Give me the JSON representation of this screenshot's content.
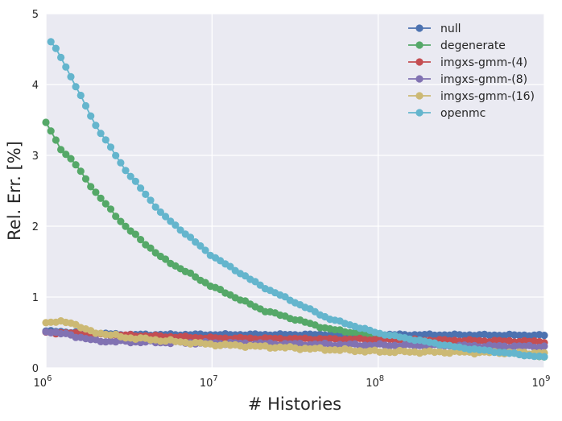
{
  "chart_data": {
    "type": "line",
    "title": "",
    "xlabel": "# Histories",
    "ylabel": "Rel. Err. [%]",
    "xscale": "log",
    "xlim": [
      1000000,
      1000000000
    ],
    "ylim": [
      0,
      5
    ],
    "x_ticks": [
      {
        "base": "10",
        "exp": "6"
      },
      {
        "base": "10",
        "exp": "7"
      },
      {
        "base": "10",
        "exp": "8"
      },
      {
        "base": "10",
        "exp": "9"
      }
    ],
    "y_ticks": [
      "0",
      "1",
      "2",
      "3",
      "4",
      "5"
    ],
    "grid": true,
    "legend_position": "top-right",
    "series": [
      {
        "name": "null",
        "color": "#4c72b0",
        "anchors": [
          [
            1000000,
            0.52
          ],
          [
            3000000,
            0.47
          ],
          [
            10000000,
            0.47
          ],
          [
            100000000,
            0.47
          ],
          [
            1000000000,
            0.46
          ]
        ],
        "noise": 0.012
      },
      {
        "name": "degenerate",
        "color": "#55a868",
        "anchors": [
          [
            1000000,
            3.46
          ],
          [
            1100000,
            3.3
          ],
          [
            1200000,
            3.12
          ],
          [
            1500000,
            2.88
          ],
          [
            2000000,
            2.47
          ],
          [
            3000000,
            2.0
          ],
          [
            5000000,
            1.55
          ],
          [
            10000000,
            1.15
          ],
          [
            20000000,
            0.82
          ],
          [
            50000000,
            0.55
          ],
          [
            100000000,
            0.45
          ],
          [
            1000000000,
            0.15
          ]
        ],
        "noise": 0.015
      },
      {
        "name": "imgxs-gmm-(4)",
        "color": "#c44e52",
        "anchors": [
          [
            1000000,
            0.5
          ],
          [
            3000000,
            0.46
          ],
          [
            10000000,
            0.42
          ],
          [
            100000000,
            0.4
          ],
          [
            1000000000,
            0.37
          ]
        ],
        "noise": 0.015
      },
      {
        "name": "imgxs-gmm-(8)",
        "color": "#8172b2",
        "anchors": [
          [
            1000000,
            0.52
          ],
          [
            1500000,
            0.45
          ],
          [
            2000000,
            0.38
          ],
          [
            5000000,
            0.36
          ],
          [
            10000000,
            0.35
          ],
          [
            100000000,
            0.32
          ],
          [
            1000000000,
            0.3
          ]
        ],
        "noise": 0.02
      },
      {
        "name": "imgxs-gmm-(16)",
        "color": "#ccb974",
        "anchors": [
          [
            1000000,
            0.64
          ],
          [
            1400000,
            0.65
          ],
          [
            1800000,
            0.52
          ],
          [
            3000000,
            0.43
          ],
          [
            10000000,
            0.33
          ],
          [
            100000000,
            0.23
          ],
          [
            1000000000,
            0.21
          ]
        ],
        "noise": 0.02
      },
      {
        "name": "openmc",
        "color": "#64b5cd",
        "anchors": [
          [
            1070000,
            4.6
          ],
          [
            1200000,
            4.44
          ],
          [
            1500000,
            3.99
          ],
          [
            2000000,
            3.42
          ],
          [
            3000000,
            2.8
          ],
          [
            5000000,
            2.17
          ],
          [
            10000000,
            1.58
          ],
          [
            20000000,
            1.15
          ],
          [
            50000000,
            0.7
          ],
          [
            100000000,
            0.49
          ],
          [
            300000000,
            0.29
          ],
          [
            1000000000,
            0.15
          ]
        ],
        "noise": 0.012
      }
    ]
  }
}
